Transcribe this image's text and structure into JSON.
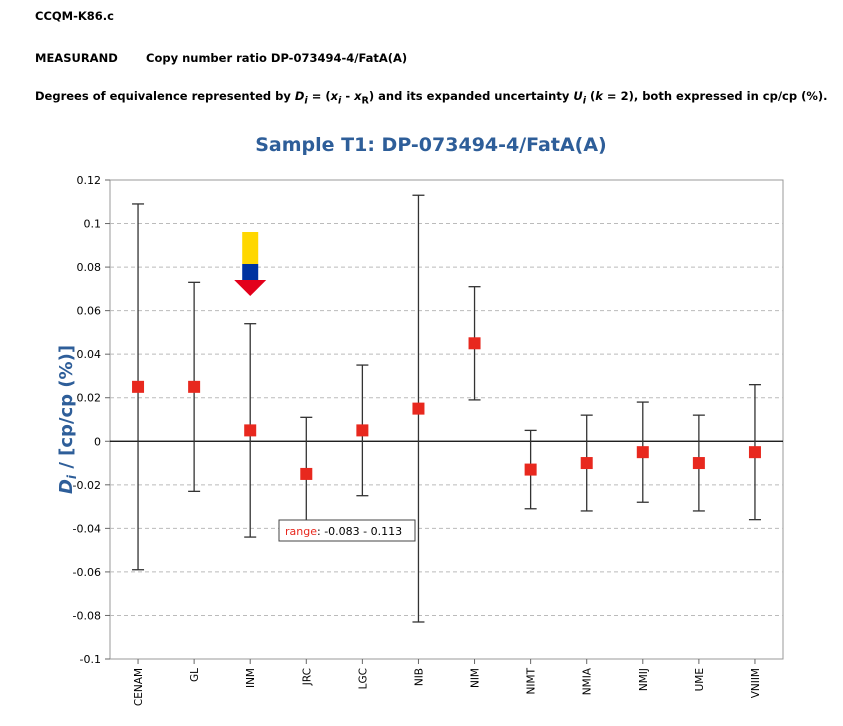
{
  "header": {
    "code": "CCQM-K86.c",
    "measurand_label": "MEASURAND",
    "measurand_value": "Copy number ratio DP-073494-4/FatA(A)",
    "doe_prefix": "Degrees of equivalence represented by ",
    "doe_middle": " and its expanded uncertainty ",
    "doe_suffix": ", both expressed in cp/cp (%)."
  },
  "chart_data": {
    "type": "scatter",
    "title": "Sample T1: DP-073494-4/FatA(A)",
    "ylabel": "D_i / [cp/cp (%)]",
    "ylim": [
      -0.1,
      0.12
    ],
    "yticks": [
      0.12,
      0.1,
      0.08,
      0.06,
      0.04,
      0.02,
      0,
      -0.02,
      -0.04,
      -0.06,
      -0.08,
      -0.1
    ],
    "ytick_labels": [
      "0.12",
      "0.1",
      "0.08",
      "0.06",
      "0.04",
      "0.02",
      "0",
      "-0.02",
      "-0.04",
      "-0.06",
      "-0.08",
      "-0.1"
    ],
    "grid": true,
    "categories": [
      "CENAM",
      "GL",
      "INM",
      "JRC",
      "LGC",
      "NIB",
      "NIM",
      "NIMT",
      "NMIA",
      "NMIJ",
      "UME",
      "VNIIM"
    ],
    "values": [
      0.025,
      0.025,
      0.005,
      -0.015,
      0.005,
      0.015,
      0.045,
      -0.013,
      -0.01,
      -0.005,
      -0.01,
      -0.005
    ],
    "error_low": [
      -0.059,
      -0.023,
      -0.044,
      -0.037,
      -0.025,
      -0.083,
      0.019,
      -0.031,
      -0.032,
      -0.028,
      -0.032,
      -0.036
    ],
    "error_high": [
      0.109,
      0.073,
      0.054,
      0.011,
      0.035,
      0.113,
      0.071,
      0.005,
      0.012,
      0.018,
      0.012,
      0.026
    ],
    "annotation": {
      "label": "range",
      "text": ": -0.083 - 0.113",
      "category": "NIB"
    },
    "arrow_marker": {
      "category": "INM",
      "colors": [
        "#FFD700",
        "#0033A0",
        "#E3001B"
      ]
    },
    "colors": {
      "marker": "#E8281E",
      "title": "#2E5E99",
      "errorbar": "#333333",
      "grid": "#BBBBBB",
      "label_red": "#E8281E"
    }
  }
}
